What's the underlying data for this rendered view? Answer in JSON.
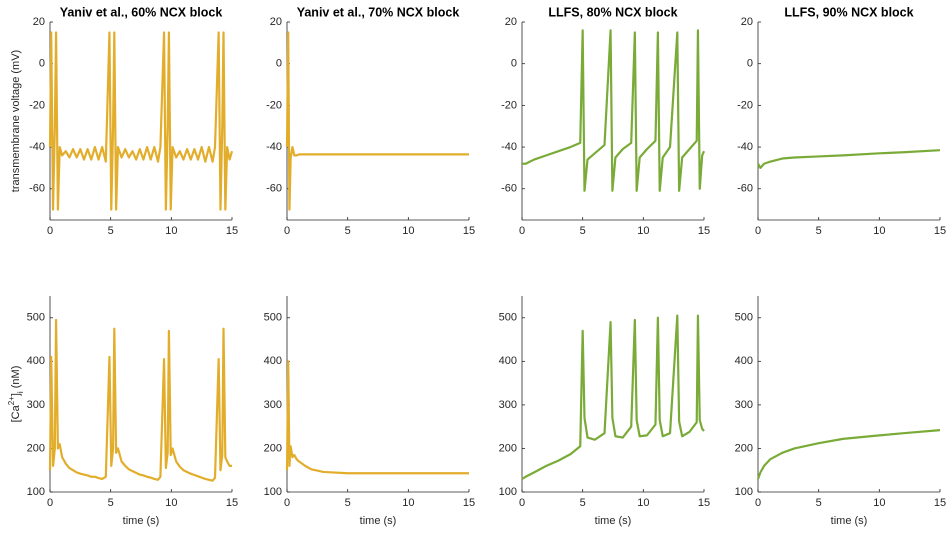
{
  "chart_data": [
    {
      "type": "line",
      "title": "Yaniv et al., 60% NCX block",
      "ylabel": "transmembrane voltage (mV)",
      "color": "#e3ad2c",
      "x": [
        0,
        0.1,
        0.25,
        0.4,
        0.5,
        0.65,
        0.8,
        1.0,
        1.3,
        1.6,
        1.9,
        2.2,
        2.5,
        2.8,
        3.1,
        3.4,
        3.7,
        4.0,
        4.3,
        4.6,
        4.9,
        5.05,
        5.2,
        5.3,
        5.45,
        5.6,
        5.9,
        6.2,
        6.5,
        6.8,
        7.1,
        7.4,
        7.7,
        8.0,
        8.3,
        8.6,
        8.9,
        9.1,
        9.4,
        9.55,
        9.7,
        9.8,
        9.95,
        10.1,
        10.4,
        10.7,
        11.0,
        11.3,
        11.6,
        11.9,
        12.2,
        12.5,
        12.8,
        13.1,
        13.4,
        13.6,
        13.9,
        14.05,
        14.2,
        14.3,
        14.45,
        14.6,
        14.8,
        15
      ],
      "values": [
        -40,
        15,
        -70,
        -30,
        15,
        -70,
        -40,
        -44,
        -42,
        -45,
        -41,
        -45,
        -41,
        -46,
        -41,
        -46,
        -40,
        -46,
        -40,
        -47,
        15,
        -70,
        -30,
        15,
        -70,
        -40,
        -45,
        -41,
        -45,
        -42,
        -46,
        -41,
        -46,
        -40,
        -46,
        -40,
        -47,
        -40,
        15,
        -70,
        -30,
        15,
        -70,
        -40,
        -45,
        -42,
        -46,
        -41,
        -46,
        -41,
        -46,
        -40,
        -47,
        -40,
        -47,
        -40,
        15,
        -70,
        -30,
        15,
        -70,
        -40,
        -46,
        -42
      ],
      "xlim": [
        0,
        15
      ],
      "xticks": [
        0,
        5,
        10,
        15
      ],
      "ylim": [
        -75,
        20
      ],
      "yticks": [
        -60,
        -40,
        -20,
        0,
        20
      ]
    },
    {
      "type": "line",
      "title": "Yaniv et al., 70% NCX block",
      "color": "#e3ad2c",
      "x": [
        0,
        0.1,
        0.2,
        0.3,
        0.45,
        0.6,
        0.8,
        1,
        1.5,
        2,
        3,
        5,
        10,
        15
      ],
      "values": [
        -40,
        15,
        -70,
        -45,
        -40,
        -44,
        -44,
        -43.5,
        -43.5,
        -43.5,
        -43.5,
        -43.5,
        -43.5,
        -43.5
      ],
      "xlim": [
        0,
        15
      ],
      "xticks": [
        0,
        5,
        10,
        15
      ],
      "ylim": [
        -75,
        20
      ],
      "yticks": [
        -60,
        -40,
        -20,
        0,
        20
      ]
    },
    {
      "type": "line",
      "title": "LLFS, 80% NCX block",
      "color": "#7aab38",
      "x": [
        0,
        0.3,
        1,
        2,
        3,
        4,
        4.8,
        5.0,
        5.15,
        5.4,
        6,
        6.8,
        7.3,
        7.45,
        7.7,
        8.3,
        9.0,
        9.3,
        9.45,
        9.7,
        10.3,
        11.0,
        11.2,
        11.35,
        11.6,
        12.2,
        12.8,
        12.95,
        13.2,
        13.8,
        14.4,
        14.5,
        14.65,
        14.85,
        15
      ],
      "values": [
        -48,
        -48,
        -46,
        -44,
        -42,
        -40,
        -38,
        16,
        -61,
        -46,
        -43,
        -39,
        16,
        -61,
        -45,
        -41,
        -38,
        15,
        -61,
        -45,
        -41,
        -37,
        15,
        -61,
        -45,
        -40,
        15,
        -61,
        -45,
        -41,
        -37,
        16,
        -60,
        -44,
        -42
      ],
      "xlim": [
        0,
        15
      ],
      "xticks": [
        0,
        5,
        10,
        15
      ],
      "ylim": [
        -75,
        20
      ],
      "yticks": [
        -60,
        -40,
        -20,
        0,
        20
      ]
    },
    {
      "type": "line",
      "title": "LLFS, 90% NCX block",
      "color": "#7aab38",
      "x": [
        0,
        0.2,
        0.5,
        1,
        2,
        3,
        5,
        7,
        10,
        12,
        15
      ],
      "values": [
        -48,
        -50,
        -48,
        -47,
        -45.5,
        -45,
        -44.5,
        -44,
        -43,
        -42.5,
        -41.5
      ],
      "xlim": [
        0,
        15
      ],
      "xticks": [
        0,
        5,
        10,
        15
      ],
      "ylim": [
        -75,
        20
      ],
      "yticks": [
        -60,
        -40,
        -20,
        0,
        20
      ]
    },
    {
      "type": "line",
      "ylabel": [
        "[Ca",
        "2+",
        "]",
        "i",
        " (nM)"
      ],
      "xlabel": "time (s)",
      "color": "#e3ad2c",
      "x": [
        0,
        0.1,
        0.25,
        0.4,
        0.5,
        0.65,
        0.8,
        1.0,
        1.3,
        1.6,
        1.9,
        2.2,
        2.5,
        2.8,
        3.1,
        3.4,
        3.7,
        4.0,
        4.3,
        4.6,
        4.9,
        5.05,
        5.2,
        5.3,
        5.45,
        5.6,
        5.9,
        6.2,
        6.5,
        6.8,
        7.1,
        7.4,
        7.7,
        8.0,
        8.3,
        8.6,
        8.9,
        9.1,
        9.4,
        9.55,
        9.7,
        9.8,
        9.95,
        10.1,
        10.4,
        10.7,
        11.0,
        11.3,
        11.6,
        11.9,
        12.2,
        12.5,
        12.8,
        13.1,
        13.4,
        13.6,
        13.9,
        14.05,
        14.2,
        14.3,
        14.45,
        14.6,
        14.8,
        15
      ],
      "values": [
        150,
        410,
        160,
        200,
        495,
        200,
        210,
        180,
        165,
        155,
        150,
        145,
        142,
        140,
        138,
        135,
        135,
        132,
        130,
        135,
        410,
        160,
        200,
        475,
        190,
        200,
        170,
        160,
        152,
        148,
        144,
        140,
        138,
        135,
        133,
        130,
        128,
        135,
        405,
        155,
        190,
        470,
        185,
        200,
        170,
        158,
        150,
        146,
        142,
        139,
        136,
        133,
        130,
        128,
        126,
        133,
        405,
        150,
        185,
        475,
        180,
        170,
        160,
        160
      ],
      "xlim": [
        0,
        15
      ],
      "xticks": [
        0,
        5,
        10,
        15
      ],
      "ylim": [
        100,
        550
      ],
      "yticks": [
        100,
        200,
        300,
        400,
        500
      ]
    },
    {
      "type": "line",
      "xlabel": "time (s)",
      "color": "#e3ad2c",
      "x": [
        0,
        0.1,
        0.2,
        0.3,
        0.45,
        0.6,
        0.8,
        1,
        1.5,
        2,
        3,
        5,
        10,
        15
      ],
      "values": [
        150,
        400,
        160,
        205,
        180,
        185,
        175,
        170,
        160,
        152,
        146,
        143,
        143,
        143
      ],
      "xlim": [
        0,
        15
      ],
      "xticks": [
        0,
        5,
        10,
        15
      ],
      "ylim": [
        100,
        550
      ],
      "yticks": [
        100,
        200,
        300,
        400,
        500
      ]
    },
    {
      "type": "line",
      "xlabel": "time (s)",
      "color": "#7aab38",
      "x": [
        0,
        0.3,
        1,
        2,
        3,
        4,
        4.8,
        5.0,
        5.15,
        5.4,
        6,
        6.8,
        7.3,
        7.45,
        7.7,
        8.3,
        9.0,
        9.3,
        9.45,
        9.7,
        10.3,
        11.0,
        11.2,
        11.35,
        11.6,
        12.2,
        12.8,
        12.95,
        13.2,
        13.8,
        14.4,
        14.5,
        14.65,
        14.85,
        15
      ],
      "values": [
        130,
        135,
        145,
        160,
        172,
        187,
        205,
        470,
        270,
        225,
        220,
        235,
        490,
        270,
        228,
        225,
        250,
        495,
        265,
        228,
        230,
        255,
        500,
        265,
        228,
        235,
        505,
        262,
        228,
        238,
        260,
        505,
        265,
        245,
        240
      ],
      "xlim": [
        0,
        15
      ],
      "xticks": [
        0,
        5,
        10,
        15
      ],
      "ylim": [
        100,
        550
      ],
      "yticks": [
        100,
        200,
        300,
        400,
        500
      ]
    },
    {
      "type": "line",
      "xlabel": "time (s)",
      "color": "#7aab38",
      "x": [
        0,
        0.2,
        0.5,
        1,
        2,
        3,
        5,
        7,
        10,
        12,
        15
      ],
      "values": [
        130,
        145,
        160,
        175,
        190,
        200,
        212,
        222,
        230,
        235,
        242
      ],
      "xlim": [
        0,
        15
      ],
      "xticks": [
        0,
        5,
        10,
        15
      ],
      "ylim": [
        100,
        550
      ],
      "yticks": [
        100,
        200,
        300,
        400,
        500
      ]
    }
  ]
}
